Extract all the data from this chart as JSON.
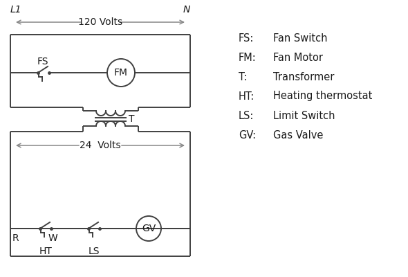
{
  "legend": [
    [
      "FS:",
      "Fan Switch"
    ],
    [
      "FM:",
      "Fan Motor"
    ],
    [
      "T:",
      "Transformer"
    ],
    [
      "HT:",
      "Heating thermostat"
    ],
    [
      "LS:",
      "Limit Switch"
    ],
    [
      "GV:",
      "Gas Valve"
    ]
  ],
  "line_color": "#404040",
  "bg_color": "#ffffff",
  "text_color": "#1a1a1a",
  "font_size": 10,
  "lw": 1.4
}
